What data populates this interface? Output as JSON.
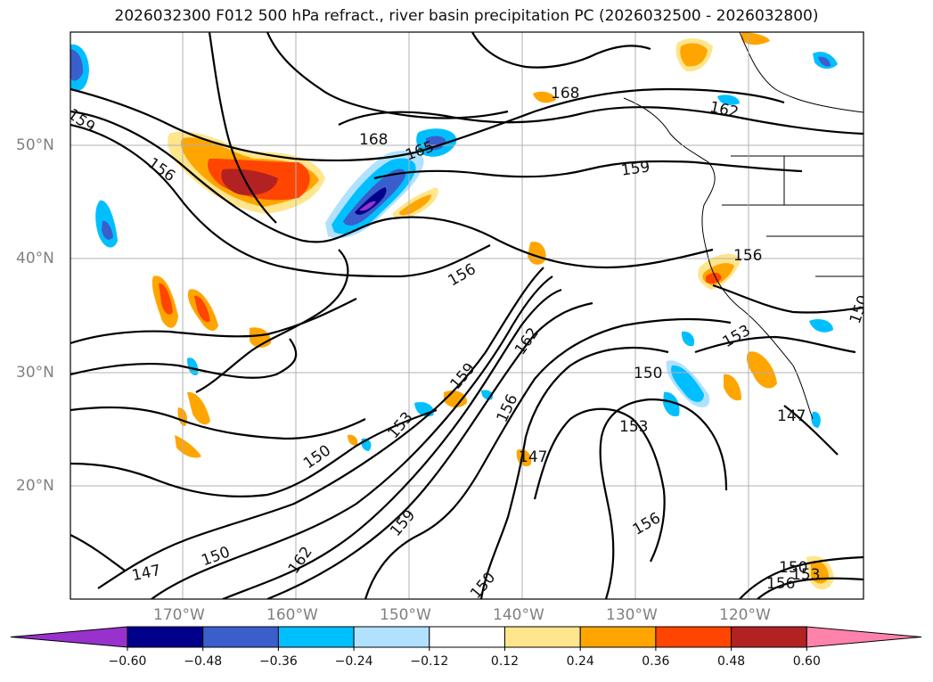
{
  "title": "2026032300 F012 500 hPa refract., river basin precipitation PC (2026032500 - 2026032800)",
  "lat_labels": [
    "50°N",
    "40°N",
    "30°N",
    "20°N"
  ],
  "lon_labels": [
    "170°W",
    "160°W",
    "150°W",
    "140°W",
    "130°W",
    "120°W"
  ],
  "contour_labels": [
    "159",
    "156",
    "168",
    "165",
    "168",
    "162",
    "159",
    "156",
    "156",
    "162",
    "159",
    "153",
    "150",
    "150",
    "147",
    "153",
    "156",
    "147",
    "150",
    "150",
    "153",
    "156",
    "150",
    "162",
    "159",
    "147",
    "150",
    "153",
    "156"
  ],
  "colorbar": {
    "ticks": [
      "−0.60",
      "−0.48",
      "−0.36",
      "−0.24",
      "−0.12",
      "0.12",
      "0.24",
      "0.36",
      "0.48",
      "0.60"
    ],
    "colors": [
      "#9932CC",
      "#00008B",
      "#3A5FCD",
      "#00BFFF",
      "#B0E2FF",
      "#FFFFFF",
      "#FFE58C",
      "#FFA500",
      "#FF4500",
      "#B22222",
      "#FF82AB"
    ]
  }
}
